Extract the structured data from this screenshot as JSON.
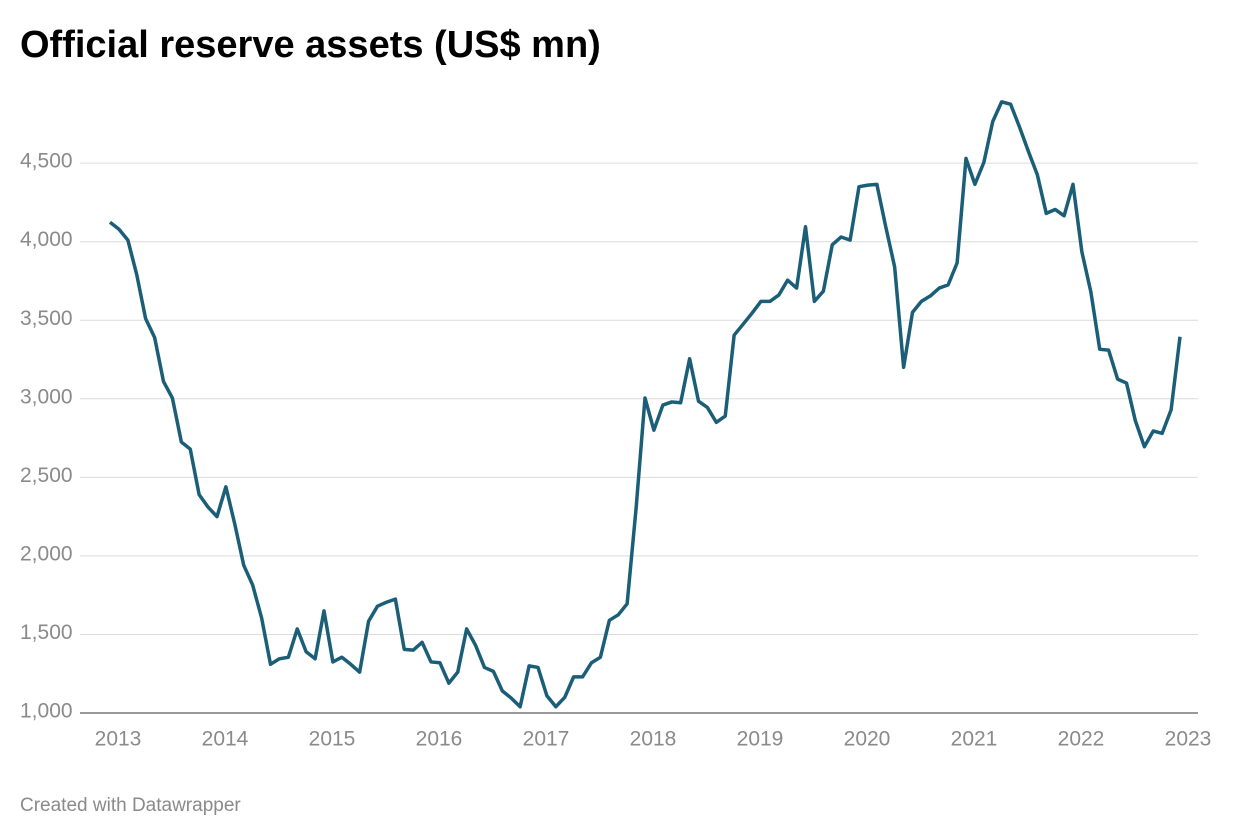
{
  "chart_data": {
    "type": "line",
    "title": "Official reserve assets (US$ mn)",
    "credit": "Created with Datawrapper",
    "x": [
      2013,
      2013.083,
      2013.167,
      2013.25,
      2013.333,
      2013.417,
      2013.5,
      2013.583,
      2013.667,
      2013.75,
      2013.833,
      2013.917,
      2014,
      2014.083,
      2014.167,
      2014.25,
      2014.333,
      2014.417,
      2014.5,
      2014.583,
      2014.667,
      2014.75,
      2014.833,
      2014.917,
      2015,
      2015.083,
      2015.167,
      2015.25,
      2015.333,
      2015.417,
      2015.5,
      2015.583,
      2015.667,
      2015.75,
      2015.833,
      2015.917,
      2016,
      2016.083,
      2016.167,
      2016.25,
      2016.333,
      2016.417,
      2016.5,
      2016.583,
      2016.667,
      2016.75,
      2016.833,
      2016.917,
      2017,
      2017.083,
      2017.167,
      2017.25,
      2017.333,
      2017.417,
      2017.5,
      2017.583,
      2017.667,
      2017.75,
      2017.833,
      2017.917,
      2018,
      2018.083,
      2018.167,
      2018.25,
      2018.333,
      2018.417,
      2018.5,
      2018.583,
      2018.667,
      2018.75,
      2018.833,
      2018.917,
      2019,
      2019.083,
      2019.167,
      2019.25,
      2019.333,
      2019.417,
      2019.5,
      2019.583,
      2019.667,
      2019.75,
      2019.833,
      2019.917,
      2020,
      2020.083,
      2020.167,
      2020.25,
      2020.333,
      2020.417,
      2020.5,
      2020.583,
      2020.667,
      2020.75,
      2020.833,
      2020.917,
      2021,
      2021.083,
      2021.167,
      2021.25,
      2021.333,
      2021.417,
      2021.5,
      2021.583,
      2021.667,
      2021.75,
      2021.833,
      2021.917,
      2022,
      2022.083,
      2022.167,
      2022.25,
      2022.333,
      2022.417,
      2022.5,
      2022.583,
      2022.667,
      2022.75,
      2022.833,
      2022.917,
      2023
    ],
    "series": [
      {
        "color": "#1b5e78",
        "values": [
          4124,
          4080,
          4010,
          3790,
          3510,
          3390,
          3110,
          3005,
          2725,
          2680,
          2390,
          2310,
          2250,
          2440,
          2200,
          1940,
          1815,
          1605,
          1310,
          1345,
          1355,
          1535,
          1390,
          1345,
          1650,
          1325,
          1355,
          1310,
          1260,
          1585,
          1680,
          1705,
          1725,
          1405,
          1400,
          1450,
          1325,
          1320,
          1190,
          1260,
          1535,
          1430,
          1290,
          1265,
          1140,
          1095,
          1040,
          1300,
          1290,
          1110,
          1040,
          1100,
          1230,
          1230,
          1320,
          1355,
          1590,
          1625,
          1695,
          2305,
          3005,
          2800,
          2960,
          2980,
          2975,
          3255,
          2985,
          2945,
          2850,
          2890,
          3405,
          3475,
          3545,
          3620,
          3620,
          3660,
          3755,
          3705,
          4095,
          3620,
          3685,
          3980,
          4030,
          4010,
          4350,
          4360,
          4365,
          4095,
          3840,
          3200,
          3550,
          3620,
          3655,
          3705,
          3725,
          3865,
          4530,
          4365,
          4505,
          4765,
          4890,
          4875,
          4730,
          4575,
          4425,
          4180,
          4205,
          4165,
          4365,
          3935,
          3680,
          3315,
          3310,
          3125,
          3100,
          2860,
          2695,
          2795,
          2780,
          2930,
          3395
        ]
      }
    ],
    "xlim": [
      2013,
      2023
    ],
    "xticks": [
      2013,
      2014,
      2015,
      2016,
      2017,
      2018,
      2019,
      2020,
      2021,
      2022,
      2023
    ],
    "ylim": [
      1000,
      4900
    ],
    "yticks": [
      {
        "value": 1000,
        "label": "1,000"
      },
      {
        "value": 1500,
        "label": "1,500"
      },
      {
        "value": 2000,
        "label": "2,000"
      },
      {
        "value": 2500,
        "label": "2,500"
      },
      {
        "value": 3000,
        "label": "3,000"
      },
      {
        "value": 3500,
        "label": "3,500"
      },
      {
        "value": 4000,
        "label": "4,000"
      },
      {
        "value": 4500,
        "label": "4,500"
      }
    ],
    "grid": true
  }
}
